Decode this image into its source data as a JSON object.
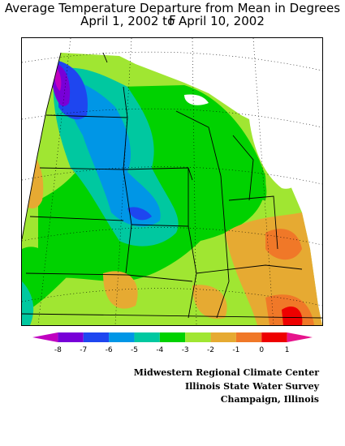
{
  "title": {
    "line1": "Average Temperature Departure from Mean in Degrees F",
    "line2": "April 1, 2002 to April 10, 2002"
  },
  "legend": {
    "ticks": [
      "-8",
      "-7",
      "-6",
      "-5",
      "-4",
      "-3",
      "-2",
      "-1",
      "0",
      "1"
    ],
    "colors": [
      "#c000c0",
      "#7800d8",
      "#1e46f0",
      "#0096e6",
      "#00c8a0",
      "#00d200",
      "#a0e632",
      "#e6aa32",
      "#f07828",
      "#ee0000",
      "#e6148c"
    ]
  },
  "credits": [
    "Midwestern Regional Climate Center",
    "Illinois State Water Survey",
    "Champaign, Illinois"
  ],
  "map": {
    "region": "Midwest United States",
    "palette": {
      "magenta": "#c000c0",
      "purple": "#7800d8",
      "blue": "#1e46f0",
      "skyblue": "#0096e6",
      "teal": "#00c8a0",
      "green": "#00d200",
      "lime": "#a0e632",
      "orange": "#e6aa32",
      "darkorange": "#f07828",
      "red": "#ee0000",
      "pink": "#e6148c"
    }
  }
}
